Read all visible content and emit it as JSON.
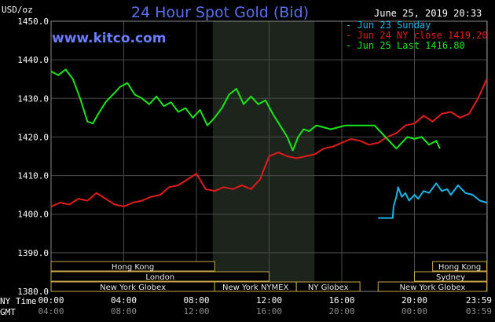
{
  "chart_data": {
    "type": "line",
    "title": "24 Hour Spot Gold (Bid)",
    "date_stamp": "June 25, 2019 20:33",
    "brand": "www.kitco.com",
    "ylabel": "USD/oz",
    "ylim": [
      1380,
      1450
    ],
    "yticks": [
      "1450.0",
      "1440.0",
      "1430.0",
      "1420.0",
      "1410.0",
      "1400.0",
      "1390.0",
      "1380.0"
    ],
    "ytick_values": [
      1450,
      1440,
      1430,
      1420,
      1410,
      1400,
      1390,
      1380
    ],
    "xlim": [
      0,
      24
    ],
    "xticks_ny": [
      "00:00",
      "04:00",
      "08:00",
      "12:00",
      "16:00",
      "20:00",
      "23:59"
    ],
    "xticks_gmt": [
      "04:00",
      "08:00",
      "12:00",
      "16:00",
      "20:00",
      "00:00",
      "03:59"
    ],
    "xtick_hours": [
      0,
      4,
      8,
      12,
      16,
      20,
      23.98
    ],
    "row_label_ny": "NY Time",
    "row_label_gmt": "GMT",
    "shaded_hours": [
      8.9,
      14.5
    ],
    "grid": true,
    "series": [
      {
        "name": "Jun 23 Sunday",
        "color": "#19b4e6",
        "x": [
          18.0,
          18.8,
          18.85,
          19.0,
          19.1,
          19.3,
          19.5,
          19.7,
          20.0,
          20.2,
          20.5,
          20.8,
          21.2,
          21.5,
          21.8,
          22.0,
          22.4,
          22.8,
          23.2,
          23.6,
          23.98
        ],
        "values": [
          1399.0,
          1399.0,
          1402.0,
          1404.5,
          1407.0,
          1404.5,
          1405.5,
          1403.5,
          1405.0,
          1404.0,
          1406.0,
          1405.5,
          1408.0,
          1406.0,
          1406.5,
          1405.0,
          1407.5,
          1405.5,
          1405.0,
          1403.5,
          1403.0
        ]
      },
      {
        "name": "Jun 24 NY close 1419.20",
        "color": "#e11b1b",
        "x": [
          0.0,
          0.5,
          1.0,
          1.5,
          2.0,
          2.5,
          3.0,
          3.5,
          4.0,
          4.5,
          5.0,
          5.5,
          6.0,
          6.5,
          7.0,
          7.5,
          8.0,
          8.5,
          9.0,
          9.5,
          10.0,
          10.5,
          11.0,
          11.5,
          12.0,
          12.5,
          13.0,
          13.5,
          14.0,
          14.5,
          15.0,
          15.5,
          16.0,
          16.5,
          17.0,
          17.5,
          18.0,
          18.5,
          19.0,
          19.5,
          20.0,
          20.5,
          21.0,
          21.5,
          22.0,
          22.5,
          23.0,
          23.5,
          23.98
        ],
        "values": [
          1402.0,
          1403.0,
          1402.5,
          1404.0,
          1403.5,
          1405.5,
          1404.0,
          1402.5,
          1402.0,
          1403.0,
          1403.5,
          1404.5,
          1405.0,
          1407.0,
          1407.5,
          1409.0,
          1410.5,
          1406.5,
          1406.0,
          1407.0,
          1406.5,
          1407.5,
          1406.5,
          1409.0,
          1415.0,
          1416.0,
          1415.0,
          1414.5,
          1415.0,
          1415.5,
          1417.0,
          1417.5,
          1418.5,
          1419.5,
          1419.0,
          1418.0,
          1418.5,
          1420.0,
          1421.0,
          1423.0,
          1423.5,
          1425.5,
          1424.0,
          1426.0,
          1426.5,
          1425.0,
          1426.0,
          1430.0,
          1435.0
        ]
      },
      {
        "name": "Jun 25 Last 1416.80",
        "color": "#19e619",
        "x": [
          0.0,
          0.4,
          0.8,
          1.2,
          1.6,
          2.0,
          2.3,
          2.6,
          3.0,
          3.4,
          3.8,
          4.2,
          4.6,
          5.0,
          5.4,
          5.8,
          6.2,
          6.6,
          7.0,
          7.4,
          7.8,
          8.2,
          8.6,
          9.0,
          9.4,
          9.8,
          10.2,
          10.6,
          11.0,
          11.4,
          11.8,
          12.2,
          12.6,
          13.0,
          13.3,
          13.6,
          13.9,
          14.2,
          14.6,
          15.0,
          15.4,
          15.8,
          16.2,
          16.6,
          17.0,
          17.4,
          17.8,
          18.2,
          18.6,
          19.0,
          19.3,
          19.6,
          20.0,
          20.4,
          20.8,
          21.2,
          21.4
        ],
        "values": [
          1437.0,
          1436.0,
          1437.5,
          1435.0,
          1430.0,
          1424.0,
          1423.5,
          1426.0,
          1429.0,
          1431.0,
          1433.0,
          1434.0,
          1431.0,
          1430.0,
          1428.5,
          1430.5,
          1428.0,
          1429.0,
          1426.5,
          1427.5,
          1425.0,
          1427.0,
          1423.0,
          1425.0,
          1427.5,
          1431.0,
          1432.5,
          1428.5,
          1430.5,
          1428.5,
          1429.5,
          1426.0,
          1423.0,
          1420.0,
          1416.5,
          1420.0,
          1422.0,
          1421.5,
          1423.0,
          1422.5,
          1422.0,
          1422.5,
          1423.0,
          1423.0,
          1423.0,
          1423.0,
          1423.0,
          1421.0,
          1419.0,
          1417.0,
          1418.5,
          1420.0,
          1419.5,
          1420.0,
          1418.0,
          1419.0,
          1417.0
        ]
      }
    ],
    "sessions": [
      {
        "name": "Hong Kong",
        "start": 0.0,
        "end": 9.0,
        "row": 0
      },
      {
        "name": "London",
        "start": 0.0,
        "end": 12.0,
        "row": 1
      },
      {
        "name": "New York Globex",
        "start": 0.0,
        "end": 9.0,
        "row": 2
      },
      {
        "name": "New York NYMEX",
        "start": 9.0,
        "end": 13.5,
        "row": 2
      },
      {
        "name": "NY Globex",
        "start": 13.5,
        "end": 17.0,
        "row": 2
      },
      {
        "name": "Hong Kong",
        "start": 21.0,
        "end": 23.98,
        "row": 0
      },
      {
        "name": "Sydney",
        "start": 20.0,
        "end": 23.98,
        "row": 1
      },
      {
        "name": "New York Globex",
        "start": 18.0,
        "end": 23.98,
        "row": 2
      }
    ]
  }
}
